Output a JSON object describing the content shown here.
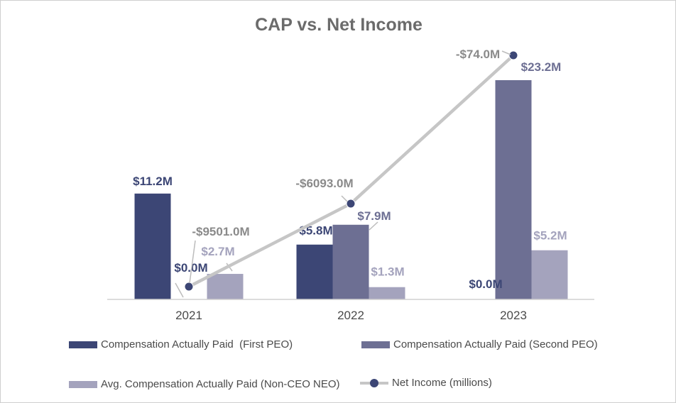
{
  "chart_data": {
    "type": "bar",
    "title": "CAP vs. Net Income",
    "categories": [
      "2021",
      "2022",
      "2023"
    ],
    "ylim": [
      0,
      25
    ],
    "series": [
      {
        "name": "Compensation Actually Paid  (First PEO)",
        "values": [
          11.2,
          5.8,
          0.0
        ],
        "labels": [
          "$11.2M",
          "$5.8M",
          "$0.0M"
        ],
        "color": "#3c4675"
      },
      {
        "name": "Compensation Actually Paid (Second PEO)",
        "values": [
          0.0,
          7.9,
          23.2
        ],
        "labels": [
          "$0.0M",
          "$7.9M",
          "$23.2M"
        ],
        "color": "#6d6f93"
      },
      {
        "name": "Avg. Compensation Actually Paid (Non-CEO NEO)",
        "values": [
          2.7,
          1.3,
          5.2
        ],
        "labels": [
          "$2.7M",
          "$1.3M",
          "$5.2M"
        ],
        "color": "#a4a3bd"
      }
    ],
    "line_series": {
      "name": "Net Income (millions)",
      "values": [
        -9501.0,
        -6093.0,
        -74.0
      ],
      "labels": [
        "-$9501.0M",
        "-$6093.0M",
        "-$74.0M"
      ],
      "range": [
        -10000,
        0
      ],
      "line_color": "#c6c6c6",
      "marker_color": "#3c4675"
    },
    "legend": "bottom"
  }
}
